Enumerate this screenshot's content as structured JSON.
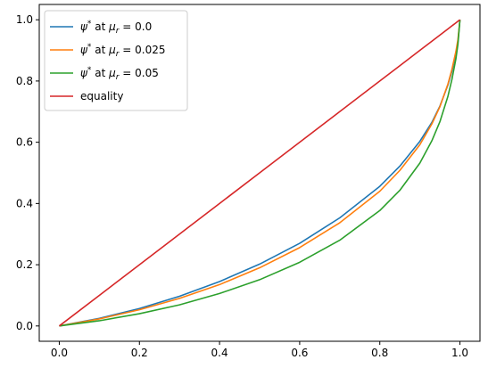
{
  "chart_data": {
    "type": "line",
    "title": "",
    "xlabel": "",
    "ylabel": "",
    "xlim": [
      -0.05,
      1.05
    ],
    "ylim": [
      -0.05,
      1.05
    ],
    "xticks": [
      0.0,
      0.2,
      0.4,
      0.6,
      0.8,
      1.0
    ],
    "yticks": [
      0.0,
      0.2,
      0.4,
      0.6,
      0.8,
      1.0
    ],
    "xtick_labels": [
      "0.0",
      "0.2",
      "0.4",
      "0.6",
      "0.8",
      "1.0"
    ],
    "ytick_labels": [
      "0.0",
      "0.2",
      "0.4",
      "0.6",
      "0.8",
      "1.0"
    ],
    "grid": false,
    "legend_position": "top-left",
    "x": [
      0.0,
      0.1,
      0.2,
      0.3,
      0.4,
      0.5,
      0.6,
      0.7,
      0.8,
      0.85,
      0.9,
      0.93,
      0.95,
      0.97,
      0.98,
      0.99,
      0.995,
      1.0
    ],
    "series": [
      {
        "name": "ψ* at μr = 0.0",
        "legend_prefix": "ψ",
        "legend_sup": "*",
        "legend_mid": " at ",
        "legend_mu": "μ",
        "legend_sub": "r",
        "legend_suffix": " = 0.0",
        "color": "#1f77b4",
        "values": [
          0.0,
          0.025,
          0.057,
          0.097,
          0.145,
          0.202,
          0.27,
          0.353,
          0.456,
          0.522,
          0.603,
          0.665,
          0.718,
          0.787,
          0.832,
          0.889,
          0.928,
          1.0
        ]
      },
      {
        "name": "ψ* at μr = 0.025",
        "legend_prefix": "ψ",
        "legend_sup": "*",
        "legend_mid": " at ",
        "legend_mu": "μ",
        "legend_sub": "r",
        "legend_suffix": " = 0.025",
        "color": "#ff7f0e",
        "values": [
          0.0,
          0.023,
          0.053,
          0.09,
          0.135,
          0.19,
          0.256,
          0.337,
          0.44,
          0.508,
          0.592,
          0.66,
          0.716,
          0.79,
          0.838,
          0.897,
          0.935,
          1.0
        ]
      },
      {
        "name": "ψ* at μr = 0.05",
        "legend_prefix": "ψ",
        "legend_sup": "*",
        "legend_mid": " at ",
        "legend_mu": "μ",
        "legend_sub": "r",
        "legend_suffix": " = 0.05",
        "color": "#2ca02c",
        "values": [
          0.0,
          0.017,
          0.04,
          0.069,
          0.106,
          0.151,
          0.208,
          0.28,
          0.377,
          0.443,
          0.532,
          0.605,
          0.667,
          0.75,
          0.805,
          0.873,
          0.92,
          1.0
        ]
      },
      {
        "name": "equality",
        "legend_prefix": "equality",
        "legend_sup": "",
        "legend_mid": "",
        "legend_mu": "",
        "legend_sub": "",
        "legend_suffix": "",
        "color": "#d62728",
        "values": [
          0.0,
          0.1,
          0.2,
          0.3,
          0.4,
          0.5,
          0.6,
          0.7,
          0.8,
          0.85,
          0.9,
          0.93,
          0.95,
          0.97,
          0.98,
          0.99,
          0.995,
          1.0
        ]
      }
    ]
  }
}
